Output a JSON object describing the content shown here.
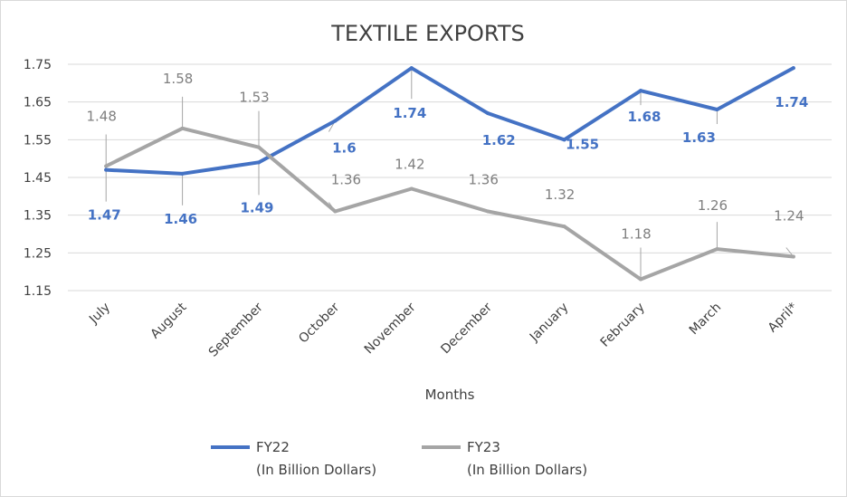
{
  "chart_data": {
    "type": "line",
    "title": "TEXTILE EXPORTS",
    "xlabel": "Months",
    "ylabel": "",
    "categories": [
      "July",
      "August",
      "September",
      "October",
      "November",
      "December",
      "January",
      "February",
      "March",
      "April*"
    ],
    "y_ticks": [
      "1.75",
      "1.65",
      "1.55",
      "1.45",
      "1.35",
      "1.25",
      "1.15"
    ],
    "ylim": [
      1.15,
      1.75
    ],
    "grid": true,
    "legend_position": "bottom",
    "series": [
      {
        "name": "FY22",
        "legend_sub": "(In Billion Dollars)",
        "color": "#4472c4",
        "values": [
          1.47,
          1.46,
          1.49,
          1.6,
          1.74,
          1.62,
          1.55,
          1.68,
          1.63,
          1.74
        ],
        "labels": [
          "1.47",
          "1.46",
          "1.49",
          "1.6",
          "1.74",
          "1.62",
          "1.55",
          "1.68",
          "1.63",
          "1.74"
        ]
      },
      {
        "name": "FY23",
        "legend_sub": "(In Billion Dollars)",
        "color": "#a5a5a5",
        "values": [
          1.48,
          1.58,
          1.53,
          1.36,
          1.42,
          1.36,
          1.32,
          1.18,
          1.26,
          1.24
        ],
        "labels": [
          "1.48",
          "1.58",
          "1.53",
          "1.36",
          "1.42",
          "1.36",
          "1.32",
          "1.18",
          "1.26",
          "1.24"
        ]
      }
    ]
  }
}
